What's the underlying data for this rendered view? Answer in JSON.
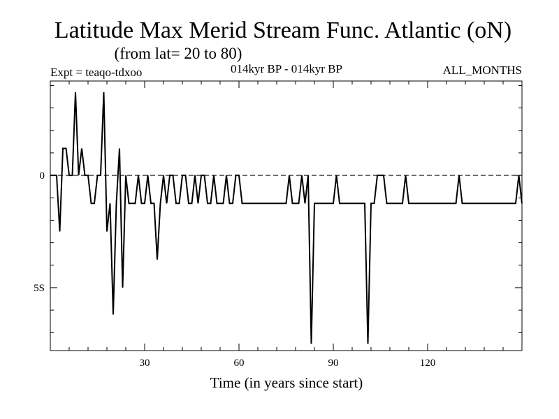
{
  "chart_data": {
    "type": "line",
    "title": "Latitude Max Merid Stream Func. Atlantic (oN)",
    "subtitle": "(from lat= 20 to 80)",
    "header_left": "Expt = teaqo-tdxoo",
    "header_center": "014kyr BP - 014kyr BP",
    "header_right": "ALL_MONTHS",
    "xlabel": "Time (in years since start)",
    "ylabel": "",
    "xlim": [
      0,
      150
    ],
    "ylim": [
      -7.8,
      4.2
    ],
    "x_ticks": [
      30,
      60,
      90,
      120
    ],
    "x_tick_labels": [
      "30",
      "60",
      "90",
      "120"
    ],
    "y_ticks": [
      0,
      -5
    ],
    "y_tick_labels": [
      "0",
      "5S"
    ],
    "zero_line": true,
    "grid": false,
    "series": [
      {
        "values": [
          [
            0,
            0
          ],
          [
            2,
            0
          ],
          [
            3,
            -2.5
          ],
          [
            4,
            1.2
          ],
          [
            5,
            1.2
          ],
          [
            6,
            0
          ],
          [
            7,
            0
          ],
          [
            8,
            3.7
          ],
          [
            9,
            0
          ],
          [
            10,
            1.2
          ],
          [
            11,
            0
          ],
          [
            12,
            0
          ],
          [
            13,
            -1.25
          ],
          [
            14,
            -1.25
          ],
          [
            15,
            0
          ],
          [
            16,
            0
          ],
          [
            17,
            3.7
          ],
          [
            18,
            -2.5
          ],
          [
            19,
            -1.25
          ],
          [
            20,
            -6.2
          ],
          [
            21,
            -1.25
          ],
          [
            22,
            1.2
          ],
          [
            23,
            -5.0
          ],
          [
            24,
            0
          ],
          [
            25,
            -1.25
          ],
          [
            26,
            -1.25
          ],
          [
            27,
            -1.25
          ],
          [
            28,
            0
          ],
          [
            29,
            -1.25
          ],
          [
            30,
            -1.25
          ],
          [
            31,
            0
          ],
          [
            32,
            -1.25
          ],
          [
            33,
            -1.25
          ],
          [
            34,
            -3.75
          ],
          [
            35,
            -1.25
          ],
          [
            36,
            0
          ],
          [
            37,
            -1.25
          ],
          [
            38,
            0
          ],
          [
            39,
            0
          ],
          [
            40,
            -1.25
          ],
          [
            41,
            -1.25
          ],
          [
            42,
            0
          ],
          [
            43,
            0
          ],
          [
            44,
            -1.25
          ],
          [
            45,
            -1.25
          ],
          [
            46,
            0
          ],
          [
            47,
            -1.25
          ],
          [
            48,
            0
          ],
          [
            49,
            0
          ],
          [
            50,
            -1.25
          ],
          [
            51,
            -1.25
          ],
          [
            52,
            0
          ],
          [
            53,
            -1.25
          ],
          [
            54,
            -1.25
          ],
          [
            55,
            -1.25
          ],
          [
            56,
            0
          ],
          [
            57,
            -1.25
          ],
          [
            58,
            -1.25
          ],
          [
            59,
            0
          ],
          [
            60,
            0
          ],
          [
            61,
            -1.25
          ],
          [
            62,
            -1.25
          ],
          [
            63,
            -1.25
          ],
          [
            64,
            -1.25
          ],
          [
            65,
            -1.25
          ],
          [
            66,
            -1.25
          ],
          [
            67,
            -1.25
          ],
          [
            68,
            -1.25
          ],
          [
            69,
            -1.25
          ],
          [
            70,
            -1.25
          ],
          [
            71,
            -1.25
          ],
          [
            72,
            -1.25
          ],
          [
            73,
            -1.25
          ],
          [
            74,
            -1.25
          ],
          [
            75,
            -1.25
          ],
          [
            76,
            0
          ],
          [
            77,
            -1.25
          ],
          [
            78,
            -1.25
          ],
          [
            79,
            -1.25
          ],
          [
            80,
            0
          ],
          [
            81,
            -1.25
          ],
          [
            82,
            0
          ],
          [
            83,
            -7.5
          ],
          [
            84,
            -1.25
          ],
          [
            85,
            -1.25
          ],
          [
            86,
            -1.25
          ],
          [
            87,
            -1.25
          ],
          [
            88,
            -1.25
          ],
          [
            89,
            -1.25
          ],
          [
            90,
            -1.25
          ],
          [
            91,
            0
          ],
          [
            92,
            -1.25
          ],
          [
            93,
            -1.25
          ],
          [
            94,
            -1.25
          ],
          [
            95,
            -1.25
          ],
          [
            96,
            -1.25
          ],
          [
            97,
            -1.25
          ],
          [
            98,
            -1.25
          ],
          [
            99,
            -1.25
          ],
          [
            100,
            -1.25
          ],
          [
            101,
            -7.5
          ],
          [
            102,
            -1.25
          ],
          [
            103,
            -1.25
          ],
          [
            104,
            0
          ],
          [
            105,
            0
          ],
          [
            106,
            0
          ],
          [
            107,
            -1.25
          ],
          [
            108,
            -1.25
          ],
          [
            109,
            -1.25
          ],
          [
            110,
            -1.25
          ],
          [
            111,
            -1.25
          ],
          [
            112,
            -1.25
          ],
          [
            113,
            0
          ],
          [
            114,
            -1.25
          ],
          [
            115,
            -1.25
          ],
          [
            116,
            -1.25
          ],
          [
            117,
            -1.25
          ],
          [
            118,
            -1.25
          ],
          [
            119,
            -1.25
          ],
          [
            120,
            -1.25
          ],
          [
            121,
            -1.25
          ],
          [
            122,
            -1.25
          ],
          [
            123,
            -1.25
          ],
          [
            124,
            -1.25
          ],
          [
            125,
            -1.25
          ],
          [
            126,
            -1.25
          ],
          [
            127,
            -1.25
          ],
          [
            128,
            -1.25
          ],
          [
            129,
            -1.25
          ],
          [
            130,
            0
          ],
          [
            131,
            -1.25
          ],
          [
            132,
            -1.25
          ],
          [
            133,
            -1.25
          ],
          [
            134,
            -1.25
          ],
          [
            135,
            -1.25
          ],
          [
            136,
            -1.25
          ],
          [
            137,
            -1.25
          ],
          [
            138,
            -1.25
          ],
          [
            139,
            -1.25
          ],
          [
            140,
            -1.25
          ],
          [
            141,
            -1.25
          ],
          [
            142,
            -1.25
          ],
          [
            143,
            -1.25
          ],
          [
            144,
            -1.25
          ],
          [
            145,
            -1.25
          ],
          [
            146,
            -1.25
          ],
          [
            147,
            -1.25
          ],
          [
            148,
            -1.25
          ],
          [
            149,
            0
          ],
          [
            150,
            -1.25
          ]
        ],
        "color": "#000000"
      }
    ]
  }
}
